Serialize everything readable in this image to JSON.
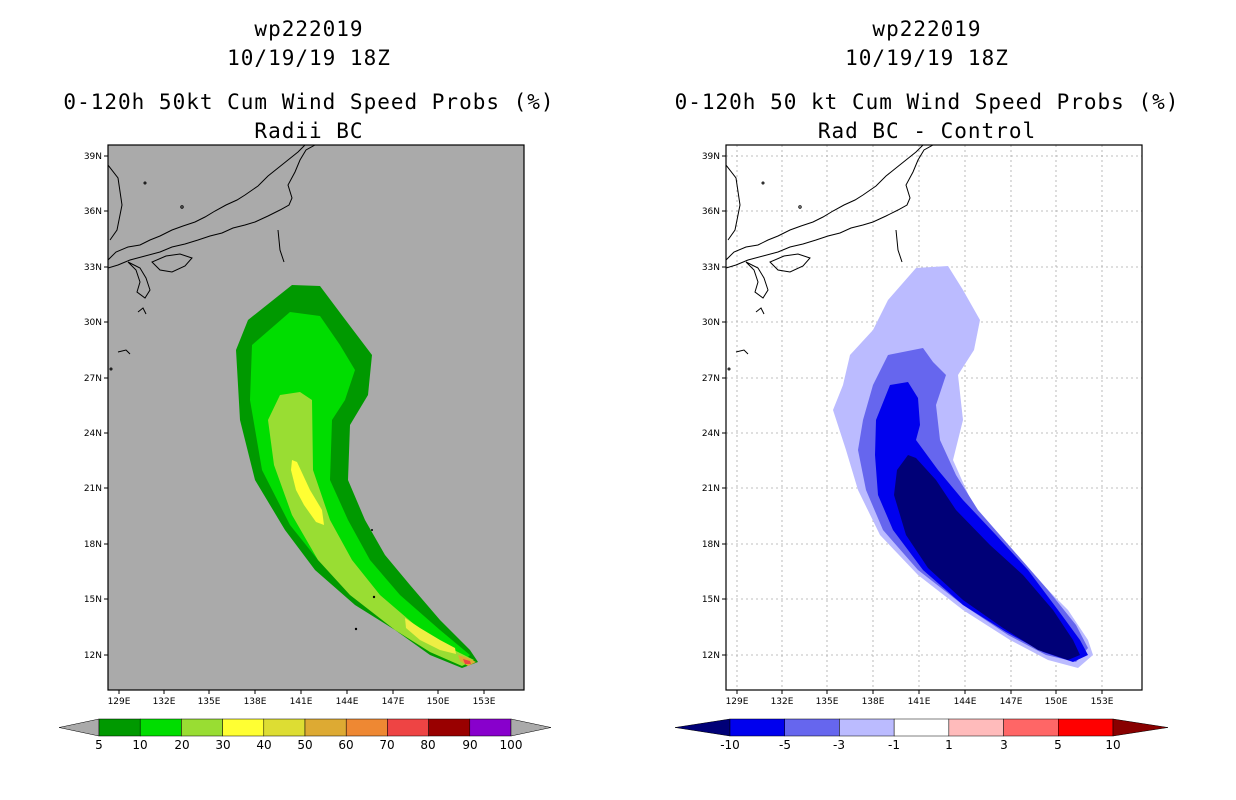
{
  "panels": [
    {
      "title_line1": "wp222019",
      "title_line2": "10/19/19 18Z",
      "title_line3": "0-120h 50kt Cum Wind Speed Probs (%)",
      "title_line4": "Radii BC",
      "lat_ticks": [
        "39N",
        "36N",
        "33N",
        "30N",
        "27N",
        "24N",
        "21N",
        "18N",
        "15N",
        "12N"
      ],
      "lon_ticks": [
        "129E",
        "132E",
        "135E",
        "138E",
        "141E",
        "144E",
        "147E",
        "150E",
        "153E"
      ],
      "colorbar": {
        "labels": [
          "5",
          "10",
          "20",
          "30",
          "40",
          "50",
          "60",
          "70",
          "80",
          "90",
          "100"
        ],
        "colors": [
          "#009900",
          "#00dd00",
          "#99dd33",
          "#ffff33",
          "#dddd33",
          "#ddaa33",
          "#ee8833",
          "#ee4444",
          "#990000",
          "#8800cc"
        ],
        "end_color": "#aaaaaa"
      },
      "background_color": "#aaaaaa"
    },
    {
      "title_line1": "wp222019",
      "title_line2": "10/19/19 18Z",
      "title_line3": "0-120h 50 kt Cum Wind Speed Probs (%)",
      "title_line4": "Rad BC - Control",
      "lat_ticks": [
        "39N",
        "36N",
        "33N",
        "30N",
        "27N",
        "24N",
        "21N",
        "18N",
        "15N",
        "12N"
      ],
      "lon_ticks": [
        "129E",
        "132E",
        "135E",
        "138E",
        "141E",
        "144E",
        "147E",
        "150E",
        "153E"
      ],
      "colorbar": {
        "labels": [
          "-10",
          "-5",
          "-3",
          "-1",
          "1",
          "3",
          "5",
          "10"
        ],
        "colors": [
          "#0000ee",
          "#6666ee",
          "#bbbbff",
          "#ffffff",
          "#ffbbbb",
          "#ff6666",
          "#ff0000"
        ],
        "end_low": "#000077",
        "end_high": "#880000"
      },
      "background_color": "#ffffff"
    }
  ]
}
